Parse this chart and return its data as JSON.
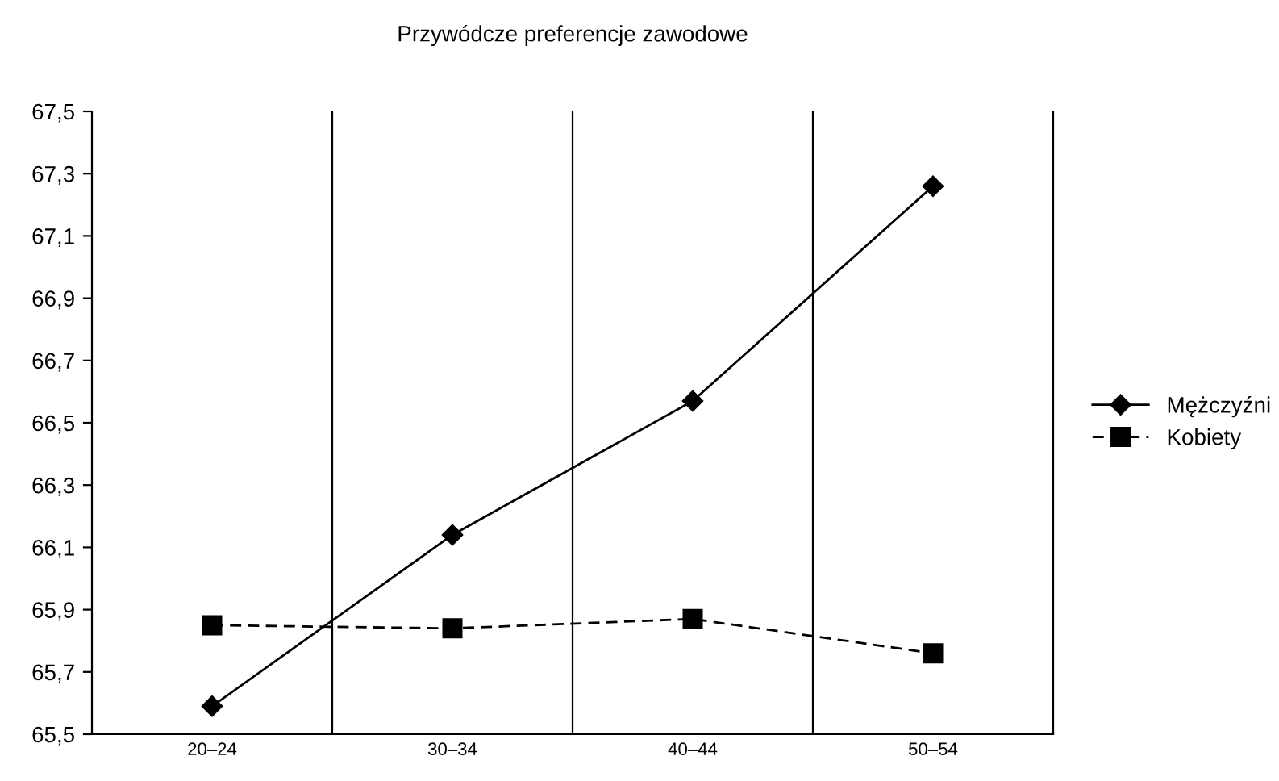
{
  "chart_data": {
    "type": "line",
    "title": "Przywódcze preferencje zawodowe",
    "categories": [
      "20–24",
      "30–34",
      "40–44",
      "50–54"
    ],
    "series": [
      {
        "name": "Mężczyźni",
        "color": "#000000",
        "values": [
          65.59,
          66.14,
          66.57,
          67.26
        ],
        "marker": "diamond",
        "line_style": "solid"
      },
      {
        "name": "Kobiety",
        "color": "#000000",
        "values": [
          65.85,
          65.84,
          65.87,
          65.76
        ],
        "marker": "square",
        "line_style": "dashed"
      }
    ],
    "ylim": [
      65.5,
      67.5
    ],
    "yticks": [
      {
        "value": 65.5,
        "label": "65,5"
      },
      {
        "value": 65.7,
        "label": "65,7"
      },
      {
        "value": 65.9,
        "label": "65,9"
      },
      {
        "value": 66.1,
        "label": "66,1"
      },
      {
        "value": 66.3,
        "label": "66,3"
      },
      {
        "value": 66.5,
        "label": "66,5"
      },
      {
        "value": 66.7,
        "label": "66,7"
      },
      {
        "value": 66.9,
        "label": "66,9"
      },
      {
        "value": 67.1,
        "label": "67,1"
      },
      {
        "value": 67.3,
        "label": "67,3"
      },
      {
        "value": 67.5,
        "label": "67,5"
      }
    ],
    "grid": "x",
    "legend": "right"
  }
}
